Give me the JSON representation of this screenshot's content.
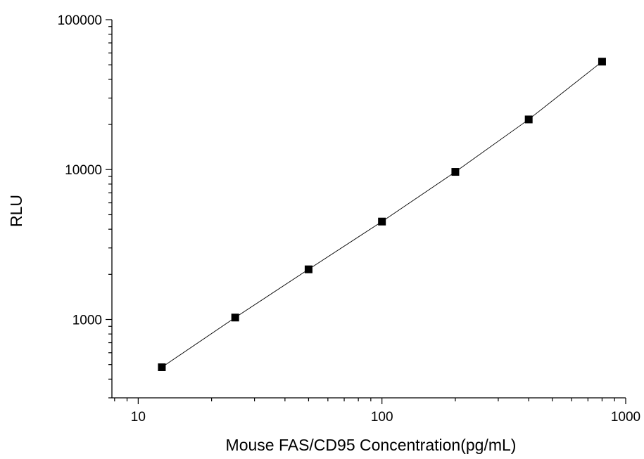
{
  "chart_data": {
    "type": "scatter",
    "title": "",
    "xlabel": "Mouse FAS/CD95 Concentration(pg/mL)",
    "ylabel": "RLU",
    "x_scale": "log",
    "y_scale": "log",
    "xlim": [
      7.8,
      1000
    ],
    "ylim": [
      300,
      100000
    ],
    "x_ticks": [
      {
        "value": 10,
        "label": "10"
      },
      {
        "value": 100,
        "label": "100"
      },
      {
        "value": 1000,
        "label": "1000"
      }
    ],
    "y_ticks": [
      {
        "value": 1000,
        "label": "1000"
      },
      {
        "value": 10000,
        "label": "10000"
      },
      {
        "value": 100000,
        "label": "100000"
      }
    ],
    "grid": false,
    "legend": "none",
    "marker": "square",
    "marker_color": "#000000",
    "line_color": "#000000",
    "series": [
      {
        "x": [
          12.5,
          25,
          50,
          100,
          200,
          400,
          800
        ],
        "y": [
          480,
          1030,
          2160,
          4500,
          9650,
          21600,
          52500
        ]
      }
    ]
  }
}
